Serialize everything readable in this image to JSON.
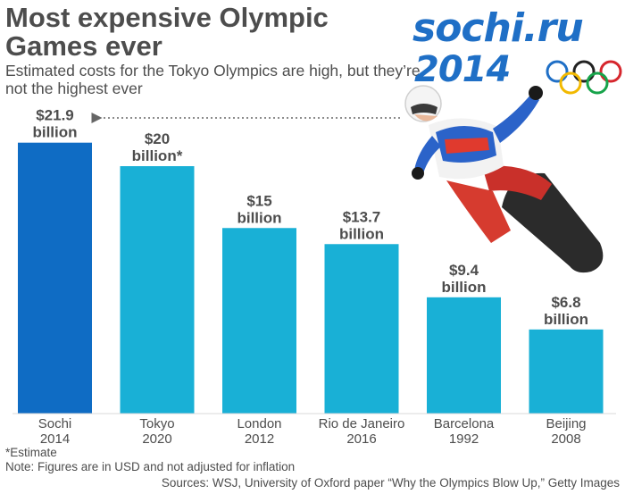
{
  "title": "Most expensive Olympic Games ever",
  "subtitle": "Estimated costs for the Tokyo Olympics are high, but they’re not the highest ever",
  "logo": {
    "wordmark_top": "sochi.ru",
    "wordmark_bottom": "2014"
  },
  "colors": {
    "highlight_bar": "#0f6cc4",
    "bar": "#19b0d6",
    "text": "#4d4d4d",
    "arrow": "#666666"
  },
  "chart_data": {
    "type": "bar",
    "title": "Most expensive Olympic Games ever",
    "subtitle": "Estimated costs for the Tokyo Olympics are high, but they’re not the highest ever",
    "unit": "billion USD",
    "categories": [
      "Sochi\n2014",
      "Tokyo\n2020",
      "London\n2012",
      "Rio de Janeiro\n2016",
      "Barcelona\n1992",
      "Beijing\n2008"
    ],
    "values": [
      21.9,
      20,
      15,
      13.7,
      9.4,
      6.8
    ],
    "value_labels": [
      [
        "$21.9",
        "billion"
      ],
      [
        "$20",
        "billion*"
      ],
      [
        "$15",
        "billion"
      ],
      [
        "$13.7",
        "billion"
      ],
      [
        "$9.4",
        "billion"
      ],
      [
        "$6.8",
        "billion"
      ]
    ],
    "highlight_index": 0,
    "ylim": [
      0,
      22.6
    ],
    "grid": false,
    "legend": "none",
    "annotation": "dotted arrow pointing from the Sochi 2014 snowboarder to the $21.9 billion bar"
  },
  "footnotes": {
    "estimate": "*Estimate",
    "note": "Note: Figures are in USD and not adjusted for inflation",
    "sources": "Sources: WSJ, University of Oxford paper “Why the Olympics Blow Up,” Getty Images"
  }
}
